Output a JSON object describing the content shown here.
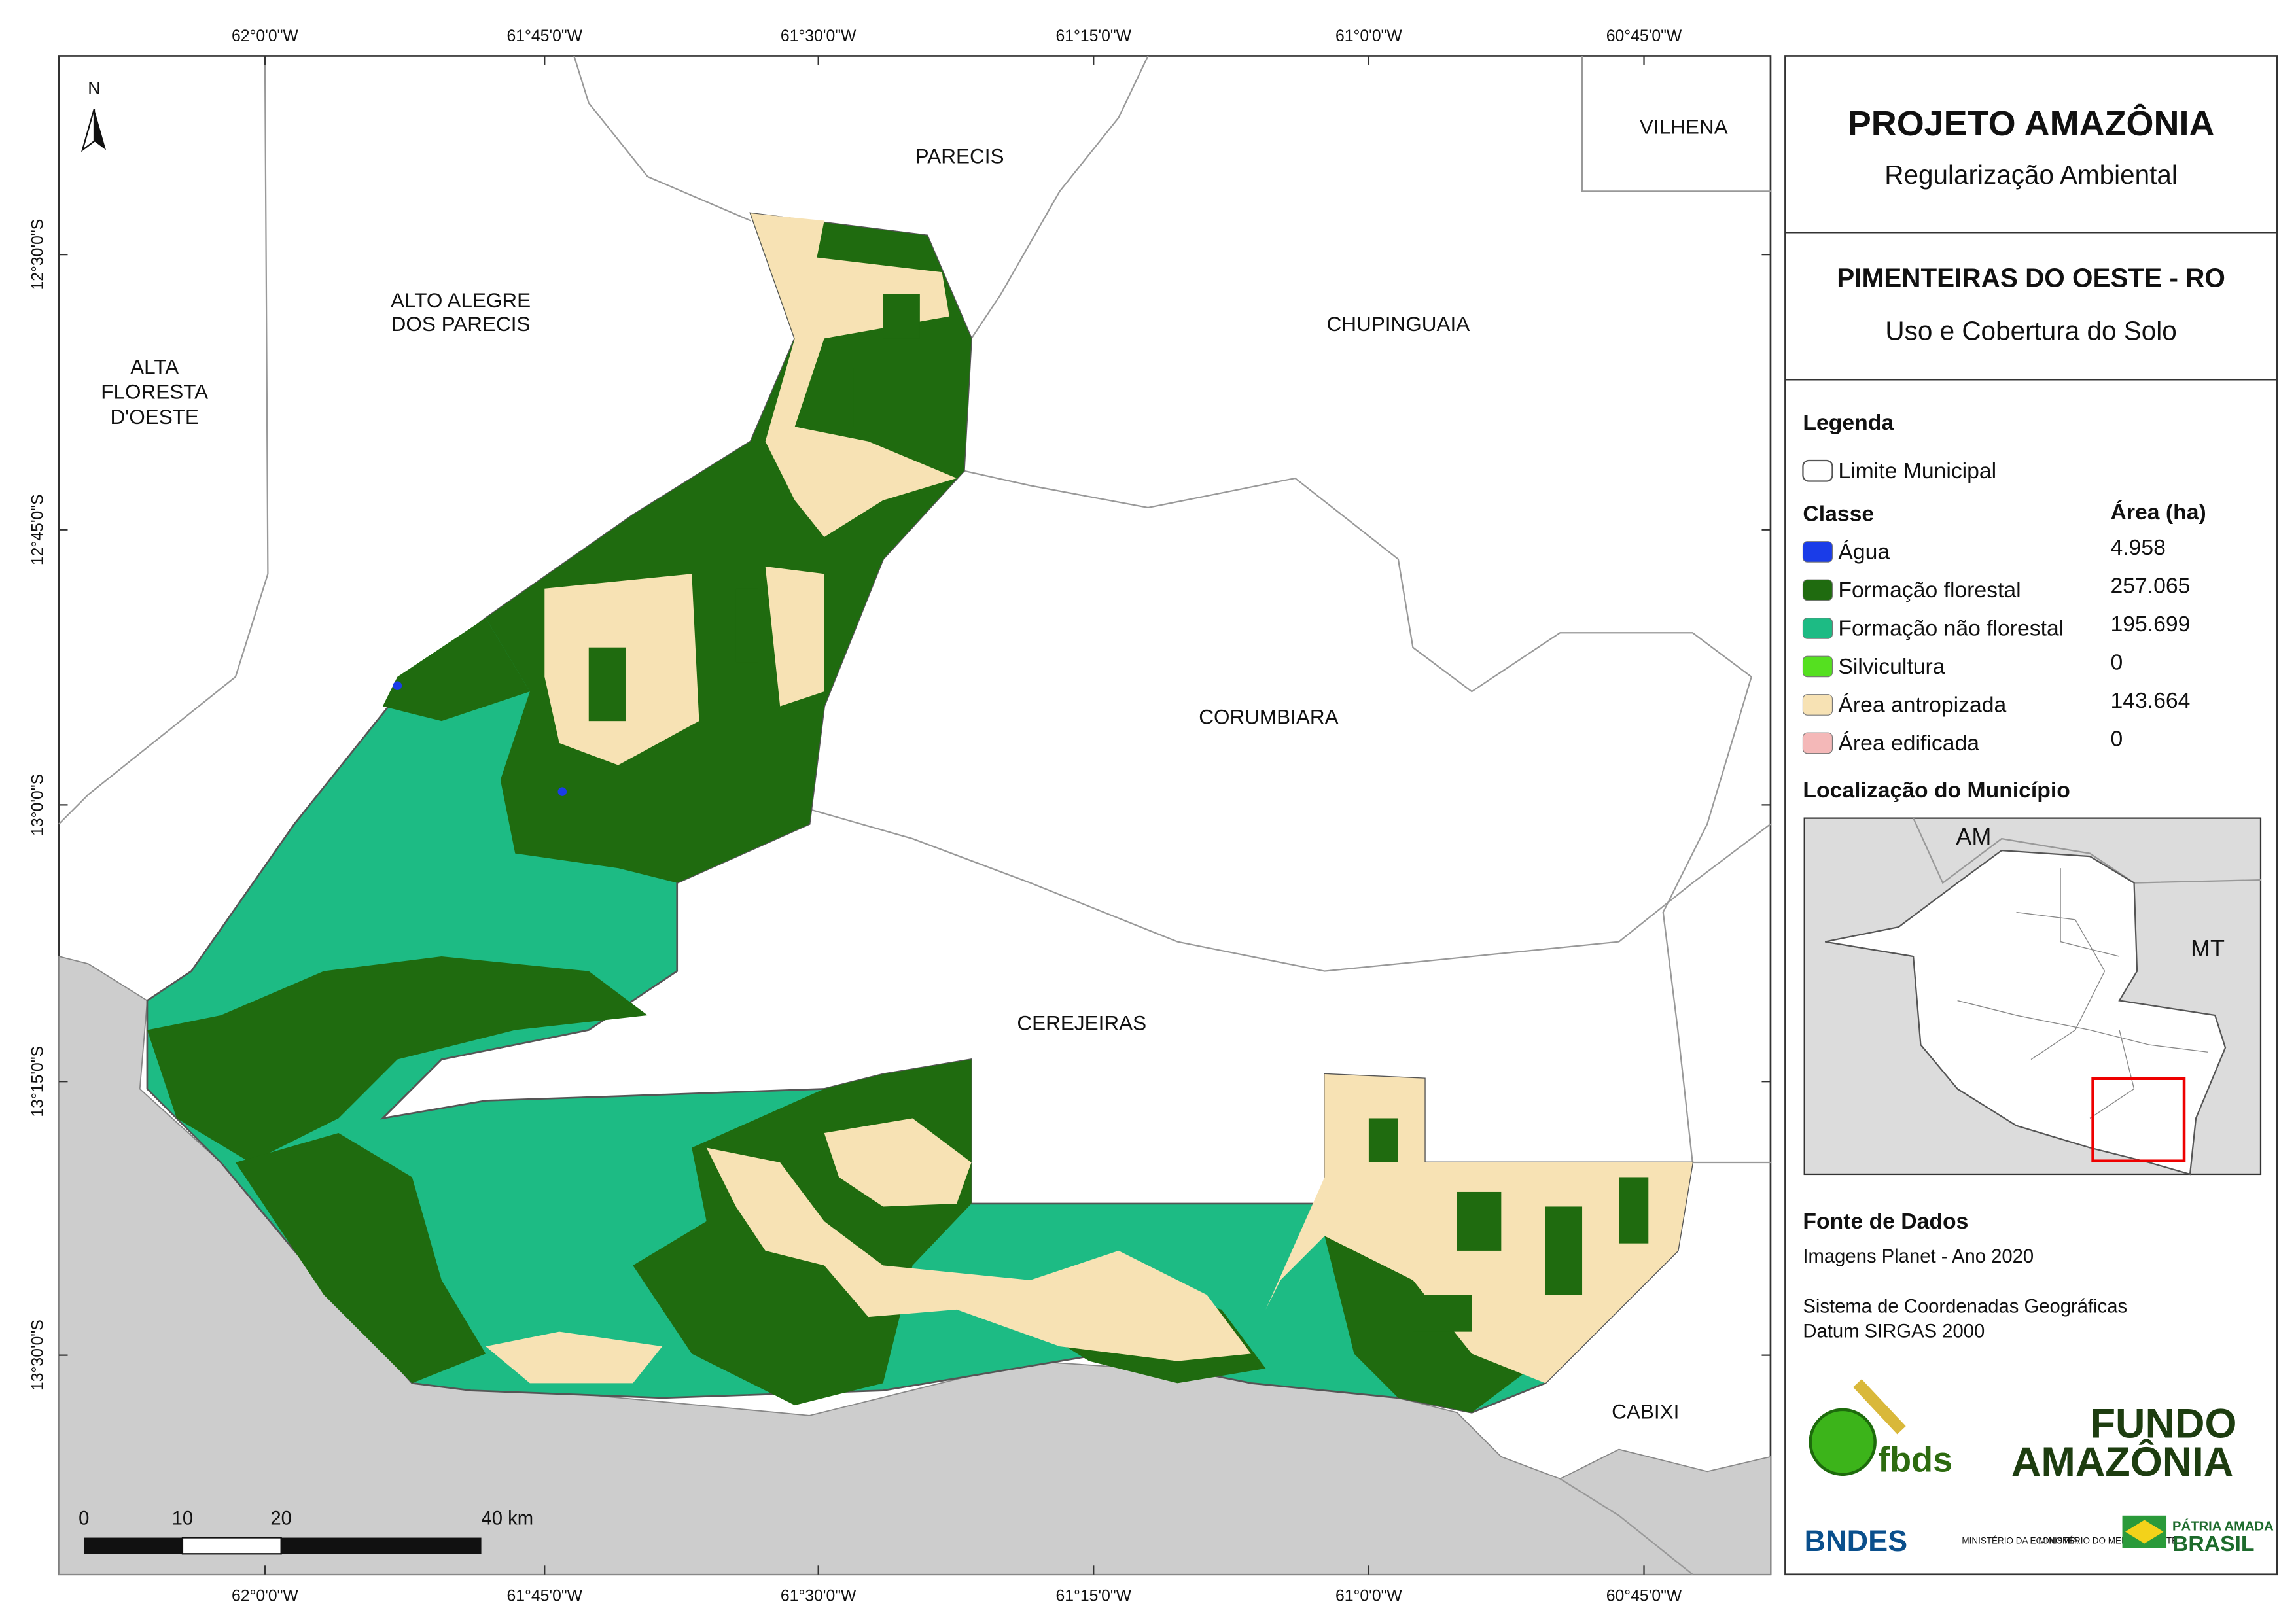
{
  "header": {
    "title": "PROJETO AMAZÔNIA",
    "subtitle": "Regularização Ambiental"
  },
  "map_title": {
    "title": "PIMENTEIRAS DO OESTE - RO",
    "subtitle": "Uso e Cobertura do Solo"
  },
  "legend": {
    "title": "Legenda",
    "boundary": "Limite Municipal",
    "class_header": "Classe",
    "area_header": "Área (ha)",
    "items": [
      {
        "label": "Água",
        "area": "4.958",
        "color": "#1a3ce8"
      },
      {
        "label": "Formação florestal",
        "area": "257.065",
        "color": "#1f6b0f"
      },
      {
        "label": "Formação não florestal",
        "area": "195.699",
        "color": "#1dbb84"
      },
      {
        "label": "Silvicultura",
        "area": "0",
        "color": "#55e020"
      },
      {
        "label": "Área antropizada",
        "area": "143.664",
        "color": "#f7e2b4"
      },
      {
        "label": "Área edificada",
        "area": "0",
        "color": "#f4b8b8"
      }
    ]
  },
  "location": {
    "title": "Localização do Município",
    "labels": [
      "AM",
      "MT"
    ]
  },
  "sources": {
    "title": "Fonte de Dados",
    "lines": [
      "Imagens Planet - Ano 2020",
      "Sistema de Coordenadas Geográficas",
      "Datum SIRGAS 2000"
    ]
  },
  "logos": {
    "fbds": "fbds",
    "fundo": "FUNDO",
    "amazonia": "AMAZÔNIA",
    "bndes": "BNDES",
    "min_economia": "MINISTÉRIO DA ECONOMIA",
    "min_meio_ambiente": "MINISTÉRIO DO MEIO AMBIENTE",
    "patria": "PÁTRIA AMADA",
    "brasil": "BRASIL"
  },
  "map": {
    "north": "N",
    "places": [
      "PARECIS",
      "VILHENA",
      "ALTO ALEGRE DOS PARECIS",
      "ALTA FLORESTA D'OESTE",
      "CHUPINGUAIA",
      "CORUMBIARA",
      "CEREJEIRAS",
      "CABIXI"
    ],
    "longitudes": [
      "62°0'0\"W",
      "61°45'0\"W",
      "61°30'0\"W",
      "61°15'0\"W",
      "61°0'0\"W",
      "60°45'0\"W"
    ],
    "latitudes": [
      "12°30'0\"S",
      "12°45'0\"S",
      "13°0'0\"S",
      "13°15'0\"S",
      "13°30'0\"S"
    ],
    "scale_bar": [
      "0",
      "10",
      "20",
      "40 km"
    ]
  }
}
